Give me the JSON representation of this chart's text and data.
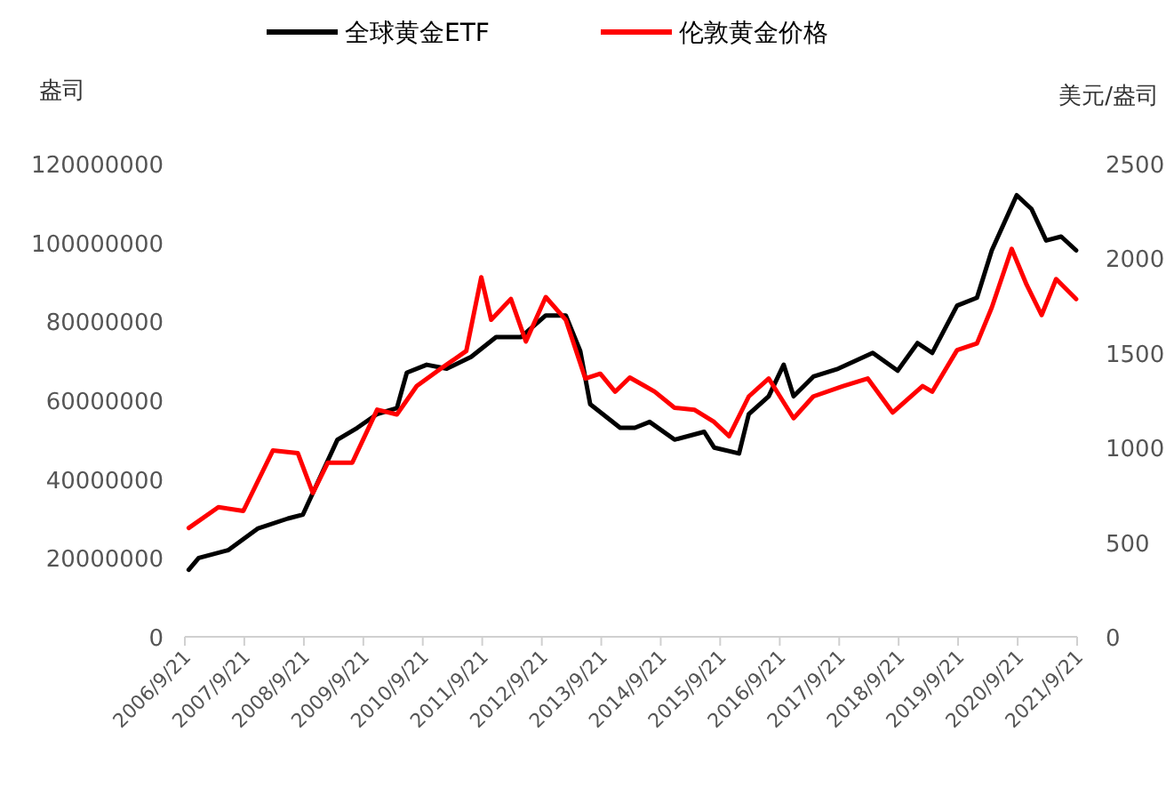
{
  "chart_data": {
    "type": "line",
    "ylabel": "盎司",
    "y2label": "美元/盎司",
    "legend": "top",
    "xlim": [
      "2006-09-21",
      "2021-09-21"
    ],
    "xticks": [
      {
        "value": "2006-09-21",
        "label": "2006/9/21"
      },
      {
        "value": "2007-09-21",
        "label": "2007/9/21"
      },
      {
        "value": "2008-09-21",
        "label": "2008/9/21"
      },
      {
        "value": "2009-09-21",
        "label": "2009/9/21"
      },
      {
        "value": "2010-09-21",
        "label": "2010/9/21"
      },
      {
        "value": "2011-09-21",
        "label": "2011/9/21"
      },
      {
        "value": "2012-09-21",
        "label": "2012/9/21"
      },
      {
        "value": "2013-09-21",
        "label": "2013/9/21"
      },
      {
        "value": "2014-09-21",
        "label": "2014/9/21"
      },
      {
        "value": "2015-09-21",
        "label": "2015/9/21"
      },
      {
        "value": "2016-09-21",
        "label": "2016/9/21"
      },
      {
        "value": "2017-09-21",
        "label": "2017/9/21"
      },
      {
        "value": "2018-09-21",
        "label": "2018/9/21"
      },
      {
        "value": "2019-09-21",
        "label": "2019/9/21"
      },
      {
        "value": "2020-09-21",
        "label": "2020/9/21"
      },
      {
        "value": "2021-09-21",
        "label": "2021/9/21"
      }
    ],
    "ylim": [
      0,
      120000000
    ],
    "yticks": [
      0,
      20000000,
      40000000,
      60000000,
      80000000,
      100000000,
      120000000
    ],
    "y2lim": [
      0,
      2500
    ],
    "y2ticks": [
      0,
      500,
      1000,
      1500,
      2000,
      2500
    ],
    "series": [
      {
        "name": "全球黄金ETF",
        "color": "#000000",
        "x": [
          "2006-10",
          "2006-12",
          "2007-06",
          "2007-12",
          "2008-06",
          "2008-09",
          "2008-11",
          "2009-04",
          "2009-08",
          "2009-12",
          "2010-04",
          "2010-06",
          "2010-10",
          "2011-02",
          "2011-07",
          "2011-12",
          "2012-05",
          "2012-10",
          "2013-02",
          "2013-05",
          "2013-07",
          "2014-01",
          "2014-04",
          "2014-07",
          "2014-12",
          "2015-06",
          "2015-08",
          "2016-01",
          "2016-03",
          "2016-07",
          "2016-10",
          "2016-12",
          "2017-04",
          "2017-09",
          "2018-04",
          "2018-09",
          "2019-01",
          "2019-04",
          "2019-09",
          "2020-01",
          "2020-04",
          "2020-09",
          "2020-12",
          "2021-03",
          "2021-06",
          "2021-09"
        ],
        "values": [
          17000000,
          20000000,
          22000000,
          27500000,
          30000000,
          31000000,
          36500000,
          50000000,
          53000000,
          56500000,
          58000000,
          67000000,
          69000000,
          68000000,
          71000000,
          76000000,
          76000000,
          81500000,
          81500000,
          72500000,
          59000000,
          53000000,
          53000000,
          54500000,
          50000000,
          52000000,
          48000000,
          46500000,
          56500000,
          61000000,
          69000000,
          61000000,
          66000000,
          68000000,
          72000000,
          67500000,
          74500000,
          72000000,
          84000000,
          86000000,
          98000000,
          112000000,
          108500000,
          100500000,
          101500000,
          98000000
        ]
      },
      {
        "name": "伦敦黄金价格",
        "color": "#ff0000",
        "axis": "y2",
        "x": [
          "2006-10",
          "2007-04",
          "2007-09",
          "2008-03",
          "2008-08",
          "2008-11",
          "2009-02",
          "2009-07",
          "2009-12",
          "2010-04",
          "2010-08",
          "2011-01",
          "2011-06",
          "2011-09",
          "2011-11",
          "2012-03",
          "2012-06",
          "2012-10",
          "2013-02",
          "2013-06",
          "2013-09",
          "2013-12",
          "2014-03",
          "2014-06",
          "2014-08",
          "2014-12",
          "2015-04",
          "2015-08",
          "2015-11",
          "2016-03",
          "2016-07",
          "2016-12",
          "2017-04",
          "2017-10",
          "2018-03",
          "2018-08",
          "2019-02",
          "2019-04",
          "2019-09",
          "2020-01",
          "2020-04",
          "2020-08",
          "2020-11",
          "2021-02",
          "2021-05",
          "2021-09"
        ],
        "values": [
          575,
          685,
          665,
          985,
          970,
          760,
          920,
          920,
          1200,
          1175,
          1325,
          1420,
          1510,
          1900,
          1675,
          1785,
          1560,
          1795,
          1675,
          1365,
          1390,
          1295,
          1370,
          1325,
          1295,
          1210,
          1200,
          1135,
          1060,
          1270,
          1365,
          1155,
          1270,
          1325,
          1365,
          1185,
          1325,
          1295,
          1515,
          1550,
          1740,
          2050,
          1860,
          1700,
          1890,
          1785
        ]
      }
    ]
  }
}
